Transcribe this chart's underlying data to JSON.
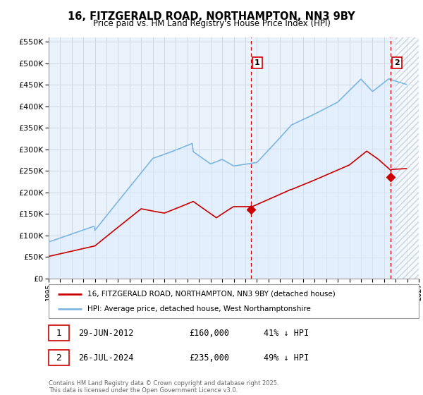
{
  "title": "16, FITZGERALD ROAD, NORTHAMPTON, NN3 9BY",
  "subtitle": "Price paid vs. HM Land Registry's House Price Index (HPI)",
  "legend_line1": "16, FITZGERALD ROAD, NORTHAMPTON, NN3 9BY (detached house)",
  "legend_line2": "HPI: Average price, detached house, West Northamptonshire",
  "footnote": "Contains HM Land Registry data © Crown copyright and database right 2025.\nThis data is licensed under the Open Government Licence v3.0.",
  "sale1_label": "1",
  "sale1_date": "29-JUN-2012",
  "sale1_price": "£160,000",
  "sale1_hpi": "41% ↓ HPI",
  "sale2_label": "2",
  "sale2_date": "26-JUL-2024",
  "sale2_price": "£235,000",
  "sale2_hpi": "49% ↓ HPI",
  "hpi_color": "#7eb6e0",
  "hpi_fill_color": "#ddeeff",
  "price_color": "#cc0000",
  "vline_color": "#cc0000",
  "grid_color": "#c8d4e0",
  "bg_color": "#eaf2fb",
  "marker1_x": 2012.5,
  "marker1_y": 160000,
  "marker2_x": 2024.58,
  "marker2_y": 235000,
  "ylim_max": 560000,
  "ylim_min": 0,
  "xmin": 1995.0,
  "xmax": 2027.0,
  "yticks": [
    0,
    50000,
    100000,
    150000,
    200000,
    250000,
    300000,
    350000,
    400000,
    450000,
    500000,
    550000
  ],
  "hatch_region_start": 2025.0,
  "hatch_region_end": 2027.0
}
